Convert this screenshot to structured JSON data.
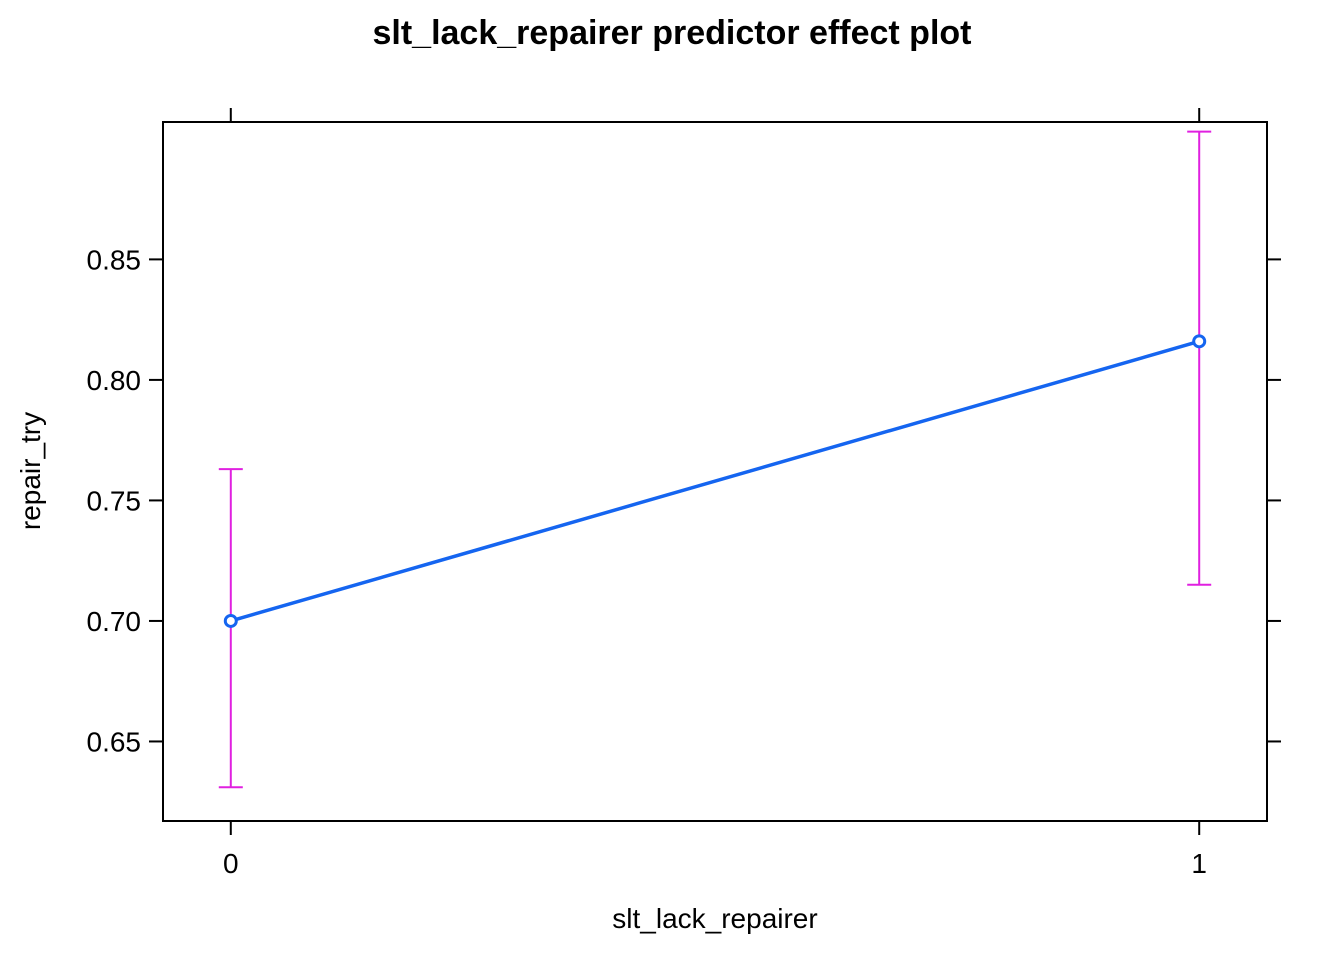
{
  "chart_data": {
    "type": "line",
    "title": "slt_lack_repairer predictor effect plot",
    "xlabel": "slt_lack_repairer",
    "ylabel": "repair_try",
    "categories": [
      "0",
      "1"
    ],
    "x": [
      0,
      1
    ],
    "xlim": [
      -0.07,
      1.07
    ],
    "ylim": [
      0.617,
      0.907
    ],
    "yticks": [
      0.65,
      0.7,
      0.75,
      0.8,
      0.85
    ],
    "ytick_labels": [
      "0.65",
      "0.70",
      "0.75",
      "0.80",
      "0.85"
    ],
    "xticks": [
      0,
      1
    ],
    "xtick_labels": [
      "0",
      "1"
    ],
    "grid": false,
    "series": [
      {
        "values": [
          0.7,
          0.816
        ],
        "lower": [
          0.631,
          0.715
        ],
        "upper": [
          0.763,
          0.903
        ]
      }
    ],
    "colors": {
      "line": "#1565f0",
      "point": "#1565f0",
      "errorbar": "#e020e0",
      "axis": "#000000"
    }
  }
}
